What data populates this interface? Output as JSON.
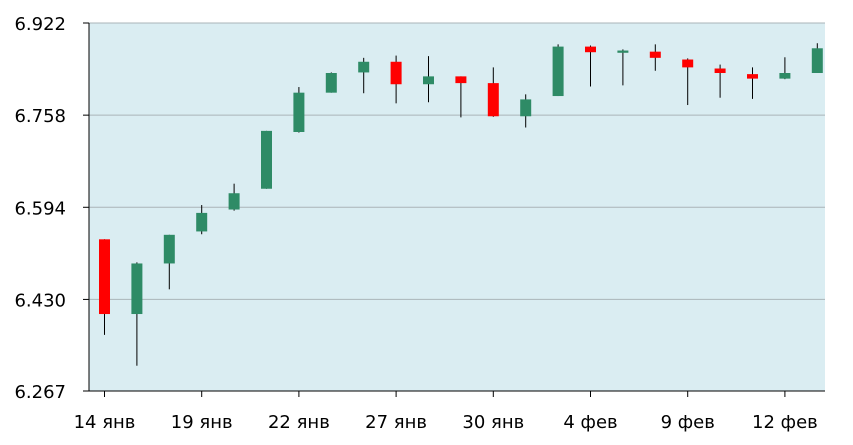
{
  "chart_data": {
    "type": "candlestick",
    "ylim": [
      6.267,
      6.922
    ],
    "y_ticks": [
      "6.922",
      "6.758",
      "6.594",
      "6.430",
      "6.267"
    ],
    "x_tick_labels": [
      {
        "index": 0,
        "label": "14 янв"
      },
      {
        "index": 3,
        "label": "19 янв"
      },
      {
        "index": 6,
        "label": "22 янв"
      },
      {
        "index": 9,
        "label": "27 янв"
      },
      {
        "index": 12,
        "label": "30 янв"
      },
      {
        "index": 15,
        "label": "4 фев"
      },
      {
        "index": 18,
        "label": "9 фев"
      },
      {
        "index": 21,
        "label": "12 фев"
      }
    ],
    "grid": true,
    "colors": {
      "plot_background": "#daedf2",
      "up": "#2e8b66",
      "down": "#ff0000",
      "wick": "#000000",
      "grid": "#aab4b8",
      "axis": "#000000"
    },
    "candles": [
      {
        "o": 6.537,
        "h": 6.537,
        "l": 6.367,
        "c": 6.404
      },
      {
        "o": 6.404,
        "h": 6.496,
        "l": 6.312,
        "c": 6.494
      },
      {
        "o": 6.494,
        "h": 6.545,
        "l": 6.448,
        "c": 6.545
      },
      {
        "o": 6.551,
        "h": 6.598,
        "l": 6.546,
        "c": 6.584
      },
      {
        "o": 6.59,
        "h": 6.636,
        "l": 6.588,
        "c": 6.619
      },
      {
        "o": 6.627,
        "h": 6.73,
        "l": 6.627,
        "c": 6.73
      },
      {
        "o": 6.728,
        "h": 6.808,
        "l": 6.727,
        "c": 6.798
      },
      {
        "o": 6.798,
        "h": 6.834,
        "l": 6.798,
        "c": 6.833
      },
      {
        "o": 6.834,
        "h": 6.86,
        "l": 6.797,
        "c": 6.853
      },
      {
        "o": 6.853,
        "h": 6.864,
        "l": 6.779,
        "c": 6.813
      },
      {
        "o": 6.813,
        "h": 6.863,
        "l": 6.781,
        "c": 6.827
      },
      {
        "o": 6.827,
        "h": 6.827,
        "l": 6.754,
        "c": 6.815
      },
      {
        "o": 6.815,
        "h": 6.843,
        "l": 6.755,
        "c": 6.756
      },
      {
        "o": 6.756,
        "h": 6.795,
        "l": 6.736,
        "c": 6.786
      },
      {
        "o": 6.792,
        "h": 6.884,
        "l": 6.792,
        "c": 6.88
      },
      {
        "o": 6.88,
        "h": 6.882,
        "l": 6.809,
        "c": 6.87
      },
      {
        "o": 6.869,
        "h": 6.875,
        "l": 6.811,
        "c": 6.873
      },
      {
        "o": 6.871,
        "h": 6.884,
        "l": 6.837,
        "c": 6.86
      },
      {
        "o": 6.857,
        "h": 6.859,
        "l": 6.776,
        "c": 6.843
      },
      {
        "o": 6.841,
        "h": 6.848,
        "l": 6.789,
        "c": 6.833
      },
      {
        "o": 6.831,
        "h": 6.843,
        "l": 6.787,
        "c": 6.823
      },
      {
        "o": 6.823,
        "h": 6.861,
        "l": 6.822,
        "c": 6.833
      },
      {
        "o": 6.833,
        "h": 6.886,
        "l": 6.833,
        "c": 6.877
      }
    ]
  }
}
